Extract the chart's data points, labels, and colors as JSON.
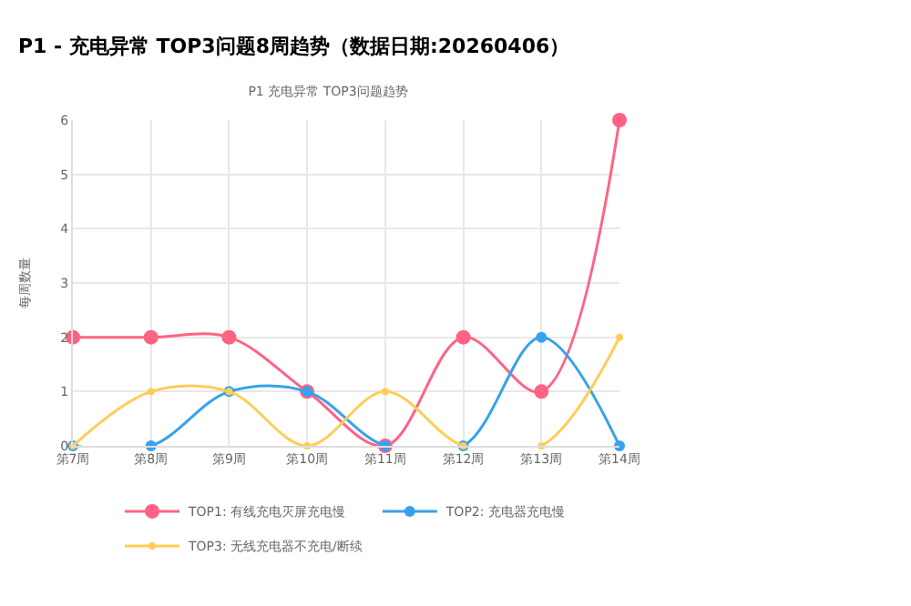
{
  "chart_data": {
    "type": "line",
    "title": "P1 - 充电异常 TOP3问题8周趋势（数据日期:20260406）",
    "subtitle": "P1 充电异常 TOP3问题趋势",
    "ylabel": "每周数量",
    "categories": [
      "第7周",
      "第8周",
      "第9周",
      "第10周",
      "第11周",
      "第12周",
      "第13周",
      "第14周"
    ],
    "series": [
      {
        "name": "TOP1: 有线充电灭屏充电慢",
        "color": "#ff6384",
        "values": [
          2,
          2,
          2,
          1,
          0,
          2,
          1,
          6
        ]
      },
      {
        "name": "TOP2: 充电器充电慢",
        "color": "#36a2eb",
        "values": [
          0,
          0,
          1,
          1,
          0,
          0,
          2,
          0
        ]
      },
      {
        "name": "TOP3: 无线充电器不充电/断续",
        "color": "#ffcd56",
        "values": [
          0,
          1,
          1,
          0,
          1,
          0,
          0,
          2
        ]
      }
    ],
    "ylim": [
      0,
      6
    ],
    "yticks": [
      0,
      1,
      2,
      3,
      4,
      5,
      6
    ],
    "grid": true,
    "legend": "bottom",
    "marker": "circle",
    "line_style": "solid"
  }
}
